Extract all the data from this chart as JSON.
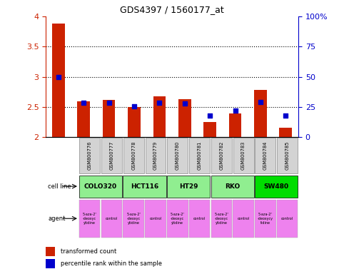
{
  "title": "GDS4397 / 1560177_at",
  "samples": [
    "GSM800776",
    "GSM800777",
    "GSM800778",
    "GSM800779",
    "GSM800780",
    "GSM800781",
    "GSM800782",
    "GSM800783",
    "GSM800784",
    "GSM800785"
  ],
  "red_values": [
    3.88,
    2.59,
    2.61,
    2.5,
    2.68,
    2.63,
    2.25,
    2.39,
    2.78,
    2.15
  ],
  "blue_values": [
    3.0,
    2.57,
    2.57,
    2.51,
    2.57,
    2.56,
    2.36,
    2.44,
    2.58,
    2.36
  ],
  "ylim_left": [
    2.0,
    4.0
  ],
  "ylim_right": [
    0,
    100
  ],
  "yticks_left": [
    2.0,
    2.5,
    3.0,
    3.5,
    4.0
  ],
  "ytick_labels_left": [
    "2",
    "2.5",
    "3",
    "3.5",
    "4"
  ],
  "yticks_right": [
    0,
    25,
    50,
    75,
    100
  ],
  "ytick_labels_right": [
    "0",
    "25",
    "50",
    "75",
    "100%"
  ],
  "grid_values": [
    2.5,
    3.0,
    3.5
  ],
  "cell_line_groups": [
    {
      "label": "COLO320",
      "start": 0,
      "end": 2,
      "color": "#90ee90"
    },
    {
      "label": "HCT116",
      "start": 2,
      "end": 4,
      "color": "#90ee90"
    },
    {
      "label": "HT29",
      "start": 4,
      "end": 6,
      "color": "#90ee90"
    },
    {
      "label": "RKO",
      "start": 6,
      "end": 8,
      "color": "#90ee90"
    },
    {
      "label": "SW480",
      "start": 8,
      "end": 10,
      "color": "#00dd00"
    }
  ],
  "agent_labels": [
    "5-aza-2'\n-deoxyc\nytidine",
    "control",
    "5-aza-2'\n-deoxyc\nytidine",
    "control",
    "5-aza-2'\n-deoxyc\nytidine",
    "control",
    "5-aza-2'\n-deoxyc\nytidine",
    "control",
    "5-aza-2'\n-deoxycy\ntidine",
    "control"
  ],
  "bar_color": "#cc2200",
  "dot_color": "#0000cc",
  "bar_width": 0.5,
  "left_axis_color": "#cc2200",
  "right_axis_color": "#0000cc",
  "sample_bg_color": "#d3d3d3",
  "legend_red": "transformed count",
  "legend_blue": "percentile rank within the sample"
}
